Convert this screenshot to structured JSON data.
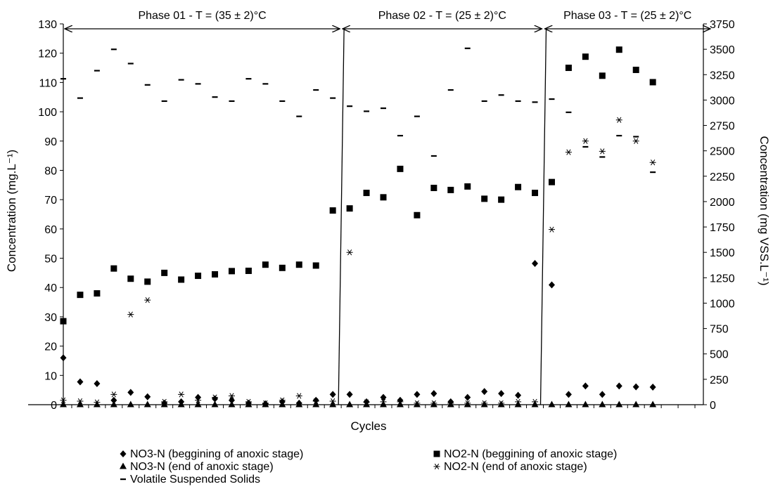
{
  "chart_data": {
    "type": "scatter",
    "xlabel": "Cycles",
    "ylabel": "Concentration (mg.L⁻¹)",
    "y2label": "Concentration (mg VSS.L⁻¹)",
    "ylim": [
      0,
      130
    ],
    "y_ticks": [
      0,
      10,
      20,
      30,
      40,
      50,
      60,
      70,
      80,
      90,
      100,
      110,
      120,
      130
    ],
    "y2lim": [
      0,
      3750
    ],
    "y2_ticks": [
      0,
      250,
      500,
      750,
      1000,
      1250,
      1500,
      1750,
      2000,
      2250,
      2500,
      2750,
      3000,
      3250,
      3500,
      3750
    ],
    "x_count": 39,
    "grid": false,
    "legend_position": "bottom",
    "phases": [
      {
        "label": "Phase 01 - T = (35 ± 2)°C",
        "start": 0,
        "end": 16.5
      },
      {
        "label": "Phase 02 - T = (25 ± 2)°C",
        "start": 16.5,
        "end": 28.5
      },
      {
        "label": "Phase 03 - T = (25 ± 2)°C",
        "start": 28.5,
        "end": 38.5
      }
    ],
    "series": [
      {
        "name": "NO3-N (beggining of anoxic stage)",
        "marker": "diamond",
        "axis": "left",
        "values": [
          16,
          7.8,
          7.2,
          1.5,
          4.2,
          2.7,
          0.5,
          1.0,
          2.5,
          2.0,
          1.5,
          0.5,
          0.3,
          1.0,
          0.5,
          1.5,
          3.5,
          3.5,
          1.0,
          2.5,
          1.5,
          3.5,
          3.8,
          1.0,
          2.5,
          4.5,
          3.8,
          3.2,
          48.2,
          40.9,
          3.5,
          6.4,
          3.5,
          6.4,
          6.1,
          6.0,
          null,
          null,
          null
        ]
      },
      {
        "name": "NO2-N (beggining of anoxic stage)",
        "marker": "square",
        "axis": "left",
        "values": [
          28.5,
          37.5,
          38.0,
          46.5,
          43.0,
          42.0,
          45.0,
          42.7,
          44.0,
          44.5,
          45.6,
          45.7,
          47.8,
          46.7,
          47.8,
          47.5,
          66.3,
          67.0,
          72.3,
          70.8,
          80.5,
          64.7,
          74.0,
          73.3,
          74.5,
          70.3,
          70.0,
          74.3,
          72.3,
          76.0,
          115.0,
          118.8,
          112.3,
          121.2,
          114.3,
          110.1,
          null,
          null,
          null
        ]
      },
      {
        "name": "NO3-N (end of anoxic stage)",
        "marker": "triangle",
        "axis": "left",
        "values": [
          0,
          0,
          0,
          0,
          0,
          0,
          0,
          0,
          0,
          0,
          0,
          0,
          0,
          0,
          0,
          0,
          0,
          0,
          0,
          0,
          0,
          0,
          0,
          0,
          0,
          0,
          0,
          0,
          0,
          0,
          0,
          0,
          0,
          0,
          0,
          0,
          null,
          null,
          null
        ]
      },
      {
        "name": "NO2-N (end of anoxic stage)",
        "marker": "asterisk",
        "axis": "left",
        "values": [
          1.5,
          1.2,
          0.8,
          3.5,
          30.8,
          35.7,
          1.0,
          3.5,
          1.5,
          2.5,
          3.0,
          1.0,
          0.5,
          1.5,
          3.0,
          1.2,
          1.2,
          52.0,
          0.8,
          1.0,
          1.0,
          0.5,
          0.5,
          0.5,
          0.5,
          0.5,
          0.5,
          1.0,
          1.0,
          59.8,
          86.2,
          90.0,
          86.5,
          97.2,
          90.0,
          82.7,
          null,
          null,
          null
        ]
      },
      {
        "name": "Volatile Suspended Solids",
        "marker": "dash",
        "axis": "right",
        "values": [
          3210,
          3020,
          3290,
          3500,
          3360,
          3150,
          2990,
          3200,
          3160,
          3030,
          2990,
          3210,
          3160,
          2990,
          2840,
          3100,
          3020,
          2940,
          2890,
          2920,
          2650,
          2840,
          2450,
          3100,
          3510,
          2990,
          3050,
          2990,
          2980,
          3010,
          2880,
          2540,
          2440,
          2650,
          2640,
          2290,
          null,
          null,
          null
        ]
      }
    ]
  }
}
